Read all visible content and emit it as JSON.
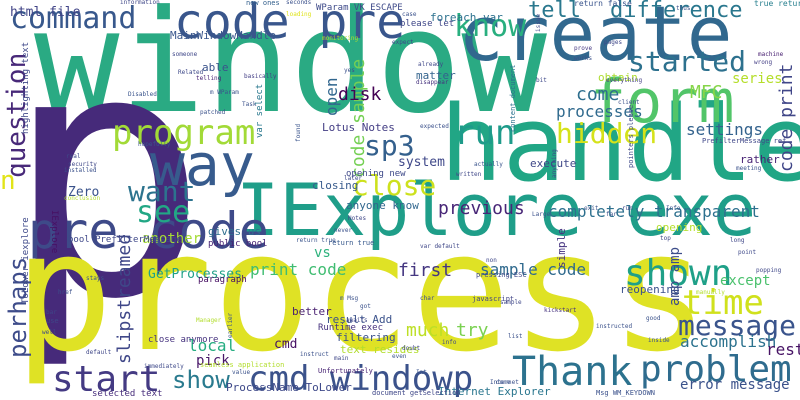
{
  "word_cloud": {
    "background_color": "#ffffff",
    "words": [
      {
        "text": "window",
        "color": "#2aaa83"
      },
      {
        "text": "p",
        "color": "#462a7a"
      },
      {
        "text": "process",
        "color": "#dfe225"
      },
      {
        "text": "handle",
        "color": "#21a685"
      },
      {
        "text": "create",
        "color": "#31688e"
      },
      {
        "text": "IExplore exe",
        "color": "#1f9e89"
      },
      {
        "text": "form",
        "color": "#52c569"
      },
      {
        "text": "pre code",
        "color": "#3e4a89"
      },
      {
        "text": "way",
        "color": "#375b8d"
      },
      {
        "text": "code pre",
        "color": "#39568c"
      },
      {
        "text": "Thank",
        "color": "#2c728e"
      },
      {
        "text": "cmd windowp",
        "color": "#3b528b"
      },
      {
        "text": "start",
        "color": "#443a83"
      },
      {
        "text": "problem",
        "color": "#2f6c8e"
      },
      {
        "text": "program",
        "color": "#a2da37"
      },
      {
        "text": "shown",
        "color": "#1fa088"
      },
      {
        "text": "command",
        "color": "#38588c"
      },
      {
        "text": "time",
        "color": "#d0e11c"
      },
      {
        "text": "run",
        "color": "#1e9b8a"
      },
      {
        "text": "message",
        "color": "#3a548c"
      },
      {
        "text": "see",
        "color": "#22a785"
      },
      {
        "text": "know",
        "color": "#29af7f"
      },
      {
        "text": "question",
        "color": "#482979"
      },
      {
        "text": "started",
        "color": "#2d718e"
      },
      {
        "text": "close",
        "color": "#cde11d"
      },
      {
        "text": "want",
        "color": "#2c738e"
      },
      {
        "text": "perhaps",
        "color": "#3e4c8a"
      },
      {
        "text": "show",
        "color": "#297a8e"
      },
      {
        "text": "hidden",
        "color": "#d5e21a"
      },
      {
        "text": "sp3",
        "color": "#34608d"
      },
      {
        "text": "n",
        "color": "#e2e418"
      },
      {
        "text": "tell",
        "color": "#2a788e"
      },
      {
        "text": "difference",
        "color": "#2a778e"
      },
      {
        "text": "html file",
        "color": "#414487"
      },
      {
        "text": "code sample",
        "color": "#75d054"
      },
      {
        "text": "code print",
        "color": "#404688"
      },
      {
        "text": "open",
        "color": "#31668e"
      },
      {
        "text": "disk",
        "color": "#440154"
      },
      {
        "text": "slipstreamed",
        "color": "#3f4788"
      },
      {
        "text": "MFC",
        "color": "#86d549"
      },
      {
        "text": "series",
        "color": "#b5de2b"
      },
      {
        "text": "previous",
        "color": "#482677"
      },
      {
        "text": "come",
        "color": "#2e6f8e"
      },
      {
        "text": "processes",
        "color": "#306a8e"
      },
      {
        "text": "completely transparent",
        "color": "#2d708e"
      },
      {
        "text": "settings",
        "color": "#33628d"
      },
      {
        "text": "print code",
        "color": "#40bd72"
      },
      {
        "text": "first",
        "color": "#453781"
      },
      {
        "text": "sample code",
        "color": "#306a8e"
      },
      {
        "text": "amp amp",
        "color": "#3d4d8a"
      },
      {
        "text": "except",
        "color": "#4ac16d"
      },
      {
        "text": "much",
        "color": "#bddf26"
      },
      {
        "text": "try",
        "color": "#7ad151"
      },
      {
        "text": "error message",
        "color": "#3b528b"
      },
      {
        "text": "accomplish",
        "color": "#2c728e"
      },
      {
        "text": "rest",
        "color": "#471365"
      },
      {
        "text": "local",
        "color": "#26ad81"
      },
      {
        "text": "pick",
        "color": "#481668"
      },
      {
        "text": "vs",
        "color": "#2db27d"
      },
      {
        "text": "another",
        "color": "#a5db36"
      },
      {
        "text": "Zero",
        "color": "#3a538b"
      },
      {
        "text": "system",
        "color": "#3f4889"
      },
      {
        "text": "execute",
        "color": "#3f4788"
      },
      {
        "text": "closing",
        "color": "#375a8c"
      },
      {
        "text": "GetProcesses",
        "color": "#1fa187"
      },
      {
        "text": "anyone know",
        "color": "#31678e"
      },
      {
        "text": "gives us",
        "color": "#2e6e8e"
      },
      {
        "text": "Lotus Notes",
        "color": "#433d84"
      },
      {
        "text": "result Add",
        "color": "#3b528b"
      },
      {
        "text": "Runtime exec",
        "color": "#46327e"
      },
      {
        "text": "filtering",
        "color": "#3b518b"
      },
      {
        "text": "cmd",
        "color": "#471164"
      },
      {
        "text": "text resides",
        "color": "#b2dd2d"
      },
      {
        "text": "ProcessName ToLower",
        "color": "#3e4989"
      },
      {
        "text": "Internet Explorer",
        "color": "#2a768e"
      },
      {
        "text": "selected text",
        "color": "#472d7b"
      },
      {
        "text": "MainWindowHandle",
        "color": "#39568c"
      },
      {
        "text": "matter",
        "color": "#33638d"
      },
      {
        "text": "obtain",
        "color": "#addc30"
      },
      {
        "text": "reopening",
        "color": "#3b518b"
      },
      {
        "text": "better",
        "color": "#481f70"
      },
      {
        "text": "paragraph",
        "color": "#471063"
      },
      {
        "text": "opening new",
        "color": "#3e4989"
      },
      {
        "text": "public bool",
        "color": "#482475"
      },
      {
        "text": "close anymore",
        "color": "#46337f"
      },
      {
        "text": "ToLower iexplore",
        "color": "#3e4989"
      },
      {
        "text": "bool PrefilterMessage",
        "color": "#3f4889"
      },
      {
        "text": "highlighting text",
        "color": "#3f4889"
      },
      {
        "text": "IExplore",
        "color": "#471063"
      },
      {
        "text": "simple",
        "color": "#463480"
      },
      {
        "text": "opening",
        "color": "#b5de2b"
      },
      {
        "text": "rather",
        "color": "#482374"
      },
      {
        "text": "WParam VK_ESCAPE",
        "color": "#3e4a89"
      },
      {
        "text": "foreach var",
        "color": "#2c718e"
      },
      {
        "text": "please let",
        "color": "#3f4788"
      },
      {
        "text": "return false",
        "color": "#3a548c"
      },
      {
        "text": "true return",
        "color": "#277f8e"
      },
      {
        "text": "new ones",
        "color": "#34608d"
      },
      {
        "text": "information",
        "color": "#3f4788"
      },
      {
        "text": "seconds",
        "color": "#3b518b"
      },
      {
        "text": "loading",
        "color": "#dfe318"
      },
      {
        "text": "able",
        "color": "#3a538b"
      },
      {
        "text": "basically",
        "color": "#433e85"
      },
      {
        "text": "Task",
        "color": "#3b528b"
      },
      {
        "text": "var select",
        "color": "#2a788e"
      },
      {
        "text": "document getSelection",
        "color": "#3f4788"
      },
      {
        "text": "pressing ESC",
        "color": "#3e4989"
      },
      {
        "text": "Msg WM_KEYDOWN",
        "color": "#3b518b"
      },
      {
        "text": "return true",
        "color": "#38598c"
      },
      {
        "text": "seamless application",
        "color": "#b2dd2d"
      },
      {
        "text": "Unfortunately",
        "color": "#482374"
      },
      {
        "text": "javascript",
        "color": "#414487"
      },
      {
        "text": "kickstart",
        "color": "#46327e"
      },
      {
        "text": "instructed",
        "color": "#3b528b"
      },
      {
        "text": "PrefilterMessage ref",
        "color": "#3f4788"
      },
      {
        "text": "content document",
        "color": "#2c728e"
      },
      {
        "text": "pointers please",
        "color": "#3e4989"
      },
      {
        "text": "expected",
        "color": "#3b518b"
      },
      {
        "text": "written",
        "color": "#3f4788"
      },
      {
        "text": "client",
        "color": "#3b528b"
      },
      {
        "text": "machine",
        "color": "#482071"
      },
      {
        "text": "wrong",
        "color": "#433e85"
      },
      {
        "text": "prove",
        "color": "#453882"
      },
      {
        "text": "works",
        "color": "#3b528b"
      },
      {
        "text": "everything",
        "color": "#433e85"
      },
      {
        "text": "m WParam",
        "color": "#3b528b"
      },
      {
        "text": "monitoring",
        "color": "#b2dd2d"
      },
      {
        "text": "Related",
        "color": "#3e4989"
      },
      {
        "text": "telling",
        "color": "#482374"
      },
      {
        "text": "Disabled",
        "color": "#3a548c"
      },
      {
        "text": "patched",
        "color": "#3b528b"
      },
      {
        "text": "already",
        "color": "#3f4788"
      },
      {
        "text": "disappear",
        "color": "#46327e"
      },
      {
        "text": "case",
        "color": "#3b528b"
      },
      {
        "text": "expect",
        "color": "#3f4788"
      },
      {
        "text": "real",
        "color": "#3e4989"
      },
      {
        "text": "security",
        "color": "#3f4788"
      },
      {
        "text": "installed",
        "color": "#3b518b"
      },
      {
        "text": "hopefully",
        "color": "#3a548c"
      },
      {
        "text": "conclusion",
        "color": "#b2dd2d"
      },
      {
        "text": "meeting",
        "color": "#3b528b"
      },
      {
        "text": "popping",
        "color": "#3f4788"
      },
      {
        "text": "manually",
        "color": "#b2dd2d"
      },
      {
        "text": "good",
        "color": "#3b528b"
      },
      {
        "text": "default",
        "color": "#3f4788"
      },
      {
        "text": "immediately",
        "color": "#3e4989"
      },
      {
        "text": "instruct",
        "color": "#3b518b"
      },
      {
        "text": "main",
        "color": "#3f4788"
      },
      {
        "text": "earlier",
        "color": "#3a548c"
      },
      {
        "text": "Manager",
        "color": "#b2dd2d"
      },
      {
        "text": "value",
        "color": "#3b528b"
      },
      {
        "text": "use",
        "color": "#3f4788"
      },
      {
        "text": "well",
        "color": "#3e4989"
      },
      {
        "text": "href",
        "color": "#3b518b"
      },
      {
        "text": "bar",
        "color": "#3f4788"
      },
      {
        "text": "stays",
        "color": "#3a548c"
      },
      {
        "text": "m Msg",
        "color": "#3b528b"
      },
      {
        "text": "awaits",
        "color": "#3f4788"
      },
      {
        "text": "char",
        "color": "#3e4989"
      },
      {
        "text": "Large",
        "color": "#3b518b"
      },
      {
        "text": "var default",
        "color": "#3f4788"
      },
      {
        "text": "return true",
        "color": "#3a548c"
      },
      {
        "text": "far",
        "color": "#3b528b"
      },
      {
        "text": "top",
        "color": "#3f4788"
      },
      {
        "text": "later",
        "color": "#3e4989"
      },
      {
        "text": "never",
        "color": "#3b518b"
      },
      {
        "text": "Notes",
        "color": "#3f4788"
      },
      {
        "text": "Int",
        "color": "#3a548c"
      },
      {
        "text": "got",
        "color": "#3b528b"
      },
      {
        "text": "non",
        "color": "#3f4788"
      },
      {
        "text": "bit",
        "color": "#3e4989"
      },
      {
        "text": "yes",
        "color": "#3b518b"
      },
      {
        "text": "issue",
        "color": "#3f4788"
      },
      {
        "text": "found",
        "color": "#3a548c"
      },
      {
        "text": "thus",
        "color": "#3b528b"
      },
      {
        "text": "someone",
        "color": "#3f4788"
      },
      {
        "text": "anything",
        "color": "#3e4989"
      },
      {
        "text": "Internet",
        "color": "#3b518b"
      },
      {
        "text": "sample",
        "color": "#3f4788"
      },
      {
        "text": "even",
        "color": "#3a548c"
      },
      {
        "text": "done",
        "color": "#3b528b"
      },
      {
        "text": "doubt",
        "color": "#3f4788"
      },
      {
        "text": "info",
        "color": "#3e4989"
      },
      {
        "text": "list",
        "color": "#3b518b"
      },
      {
        "text": "run",
        "color": "#3f4788"
      },
      {
        "text": "exit",
        "color": "#3a548c"
      },
      {
        "text": "Info",
        "color": "#3b528b"
      },
      {
        "text": "long",
        "color": "#3f4788"
      },
      {
        "text": "point",
        "color": "#3e4989"
      },
      {
        "text": "inside",
        "color": "#3b518b"
      },
      {
        "text": "pages",
        "color": "#3f4788"
      },
      {
        "text": "actually",
        "color": "#3a548c"
      },
      {
        "text": "briefly",
        "color": "#b2dd2d"
      },
      {
        "text": "process",
        "color": "#3b528b"
      }
    ]
  }
}
